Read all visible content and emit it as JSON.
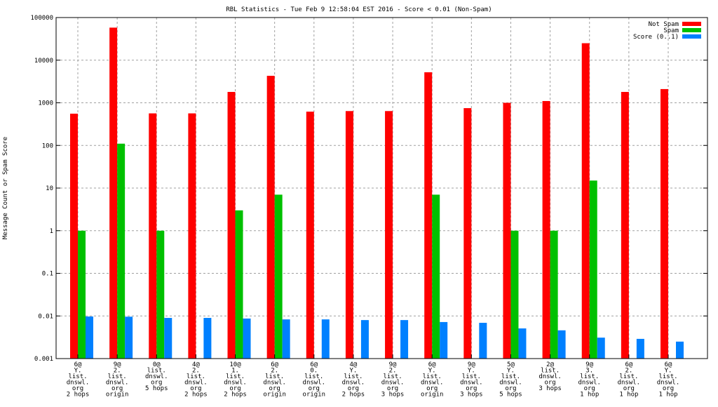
{
  "chart_data": {
    "type": "bar",
    "title": "RBL Statistics - Tue Feb  9 12:58:04 EST 2016 - Score < 0.01 (Non-Spam)",
    "xlabel": "",
    "ylabel": "Message Count or Spam Score",
    "yscale": "log",
    "ylim": [
      0.001,
      100000
    ],
    "yticks": [
      "0.001",
      "0.01",
      "0.1",
      "1",
      "10",
      "100",
      "1000",
      "10000",
      "100000"
    ],
    "grid": true,
    "legend_position": "top-right",
    "categories": [
      [
        "6@",
        "Y.",
        "list.",
        "dnswl.",
        "org",
        "2 hops"
      ],
      [
        "9@",
        "2.",
        "list.",
        "dnswl.",
        "org",
        "origin"
      ],
      [
        "0@",
        "list.",
        "dnswl.",
        "org",
        "5 hops"
      ],
      [
        "4@",
        "2.",
        "list.",
        "dnswl.",
        "org",
        "2 hops"
      ],
      [
        "10@",
        "1.",
        "list.",
        "dnswl.",
        "org",
        "2 hops"
      ],
      [
        "6@",
        "2.",
        "list.",
        "dnswl.",
        "org",
        "origin"
      ],
      [
        "6@",
        "0.",
        "list.",
        "dnswl.",
        "org",
        "origin"
      ],
      [
        "4@",
        "Y.",
        "list.",
        "dnswl.",
        "org",
        "2 hops"
      ],
      [
        "9@",
        "2.",
        "list.",
        "dnswl.",
        "org",
        "3 hops"
      ],
      [
        "6@",
        "Y.",
        "list.",
        "dnswl.",
        "org",
        "origin"
      ],
      [
        "9@",
        "Y.",
        "list.",
        "dnswl.",
        "org",
        "3 hops"
      ],
      [
        "5@",
        "Y.",
        "list.",
        "dnswl.",
        "org",
        "5 hops"
      ],
      [
        "2@",
        "list.",
        "dnswl.",
        "org",
        "3 hops"
      ],
      [
        "9@",
        "3.",
        "list.",
        "dnswl.",
        "org",
        "1 hop"
      ],
      [
        "6@",
        "2.",
        "list.",
        "dnswl.",
        "org",
        "1 hop"
      ],
      [
        "6@",
        "Y.",
        "list.",
        "dnswl.",
        "org",
        "1 hop"
      ]
    ],
    "series": [
      {
        "name": "Not Spam",
        "color": "#ff0000",
        "values": [
          556,
          58000,
          565,
          565,
          1800,
          4300,
          620,
          640,
          640,
          5200,
          750,
          1000,
          1100,
          25000,
          1800,
          2100
        ]
      },
      {
        "name": "Spam",
        "color": "#00c000",
        "values": [
          1,
          110,
          1,
          0,
          3,
          7,
          0,
          0,
          0,
          7,
          0,
          1,
          1,
          15,
          0,
          0
        ]
      },
      {
        "name": "Score (0..1)",
        "color": "#0080ff",
        "values": [
          0.0097,
          0.0096,
          0.009,
          0.009,
          0.0087,
          0.0083,
          0.0083,
          0.008,
          0.008,
          0.0072,
          0.0069,
          0.0051,
          0.0046,
          0.0031,
          0.0029,
          0.0025
        ]
      }
    ]
  }
}
